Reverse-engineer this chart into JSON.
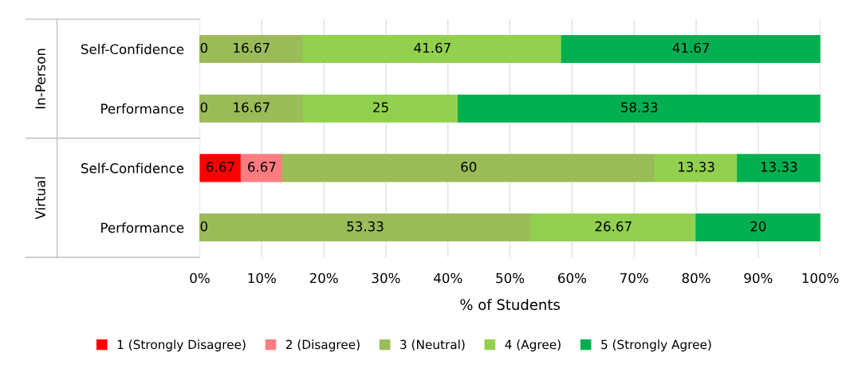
{
  "chart_data": {
    "type": "bar",
    "orientation": "horizontal",
    "stacked": true,
    "xlabel": "% of Students",
    "categories": [
      "Self-Confidence",
      "Performance",
      "Self-Confidence",
      "Performance"
    ],
    "annotations": [
      "In-Person",
      "Virtual"
    ],
    "series": [
      {
        "name": "1 (Strongly Disagree)",
        "color": "#ff0000",
        "values": [
          0,
          0,
          6.67,
          0
        ],
        "value_labels": [
          "0",
          "0",
          "6.67",
          "0"
        ]
      },
      {
        "name": "2 (Disagree)",
        "color": "#ff7c80",
        "values": [
          0,
          0,
          6.67,
          0
        ],
        "value_labels": [
          null,
          null,
          "6.67",
          null
        ]
      },
      {
        "name": "3 (Neutral)",
        "color": "#9bbb59",
        "values": [
          16.67,
          16.67,
          60,
          53.33
        ],
        "value_labels": [
          "16.67",
          "16.67",
          "60",
          "53.33"
        ]
      },
      {
        "name": "4 (Agree)",
        "color": "#92d050",
        "values": [
          41.67,
          25,
          13.33,
          26.67
        ],
        "value_labels": [
          "41.67",
          "25",
          "13.33",
          "26.67"
        ]
      },
      {
        "name": "5 (Strongly Agree)",
        "color": "#00b050",
        "values": [
          41.67,
          58.33,
          13.33,
          20
        ],
        "value_labels": [
          "41.67",
          "58.33",
          "13.33",
          "20"
        ]
      }
    ],
    "xlim": [
      0,
      100
    ],
    "xticks": [
      {
        "value": 0,
        "label": "0%"
      },
      {
        "value": 10,
        "label": "10%"
      },
      {
        "value": 20,
        "label": "20%"
      },
      {
        "value": 30,
        "label": "30%"
      },
      {
        "value": 40,
        "label": "40%"
      },
      {
        "value": 50,
        "label": "50%"
      },
      {
        "value": 60,
        "label": "60%"
      },
      {
        "value": 70,
        "label": "70%"
      },
      {
        "value": 80,
        "label": "80%"
      },
      {
        "value": 90,
        "label": "90%"
      },
      {
        "value": 100,
        "label": "100%"
      }
    ],
    "grid": "x",
    "legend": "bottom"
  }
}
